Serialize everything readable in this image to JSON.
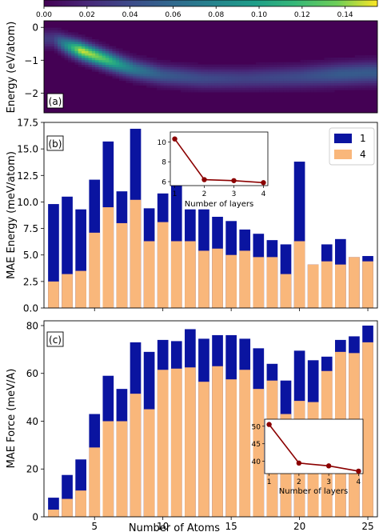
{
  "chart_data": [
    {
      "panel": "(a)",
      "type": "heatmap",
      "ylabel": "Energy (eV/atom)",
      "yticks": [
        0,
        -1,
        -2
      ],
      "ylim": [
        -2.6,
        0.2
      ],
      "colorbar": {
        "ticks": [
          "0.00",
          "0.02",
          "0.04",
          "0.06",
          "0.08",
          "0.10",
          "0.12",
          "0.14"
        ],
        "range": [
          0,
          0.155
        ],
        "colormap": "viridis"
      },
      "ridge": [
        {
          "x": 2,
          "center": -0.35,
          "peak": 0.03
        },
        {
          "x": 3,
          "center": -0.55,
          "peak": 0.09
        },
        {
          "x": 4,
          "center": -0.7,
          "peak": 0.15
        },
        {
          "x": 5,
          "center": -0.85,
          "peak": 0.14
        },
        {
          "x": 6,
          "center": -1.0,
          "peak": 0.12
        },
        {
          "x": 7,
          "center": -1.15,
          "peak": 0.09
        },
        {
          "x": 8,
          "center": -1.28,
          "peak": 0.07
        },
        {
          "x": 10,
          "center": -1.45,
          "peak": 0.05
        },
        {
          "x": 13,
          "center": -1.55,
          "peak": 0.04
        },
        {
          "x": 16,
          "center": -1.55,
          "peak": 0.035
        },
        {
          "x": 20,
          "center": -1.5,
          "peak": 0.04
        },
        {
          "x": 23,
          "center": -1.42,
          "peak": 0.05
        },
        {
          "x": 25,
          "center": -1.38,
          "peak": 0.05
        }
      ]
    },
    {
      "panel": "(b)",
      "type": "bar",
      "ylabel": "MAE Energy (meV/atom)",
      "ylim": [
        0,
        17.5
      ],
      "yticks": [
        "0.0",
        "2.5",
        "5.0",
        "7.5",
        "10.0",
        "12.5",
        "15.0",
        "17.5"
      ],
      "categories": [
        2,
        3,
        4,
        5,
        6,
        7,
        8,
        9,
        10,
        11,
        12,
        13,
        14,
        15,
        16,
        17,
        18,
        19,
        20,
        21,
        22,
        23,
        24,
        25
      ],
      "series": [
        {
          "name": "1",
          "color": "#0a14a0",
          "values": [
            9.8,
            10.5,
            9.3,
            12.1,
            15.7,
            11.0,
            16.9,
            9.4,
            10.8,
            11.8,
            9.3,
            9.3,
            8.6,
            8.2,
            7.4,
            7.0,
            6.4,
            6.0,
            13.8,
            4.1,
            6.0,
            6.5,
            4.8,
            4.9
          ]
        },
        {
          "name": "4",
          "color": "#f9b77b",
          "values": [
            2.5,
            3.2,
            3.5,
            7.1,
            9.5,
            8.0,
            10.2,
            6.3,
            8.1,
            6.3,
            6.3,
            5.4,
            5.6,
            5.0,
            5.4,
            4.8,
            4.8,
            3.2,
            6.3,
            4.1,
            4.4,
            4.1,
            4.8,
            4.4
          ]
        }
      ],
      "legend": {
        "position": "top-right",
        "entries": [
          "1",
          "4"
        ]
      },
      "inset": {
        "xlabel": "Number of layers",
        "x": [
          1,
          2,
          3,
          4
        ],
        "y": [
          10.3,
          6.2,
          6.1,
          5.9
        ],
        "xlim": [
          0.85,
          4.15
        ],
        "ylim": [
          5.6,
          11.0
        ],
        "yticks": [
          6,
          8,
          10
        ],
        "color": "#8b0000"
      }
    },
    {
      "panel": "(c)",
      "type": "bar",
      "ylabel": "MAE Force (meV/A)",
      "xlabel": "Number of Atoms",
      "ylim": [
        0,
        82
      ],
      "yticks": [
        0,
        20,
        40,
        60,
        80
      ],
      "xticks": [
        5,
        10,
        15,
        20,
        25
      ],
      "xlim": [
        1.3,
        25.7
      ],
      "categories": [
        2,
        3,
        4,
        5,
        6,
        7,
        8,
        9,
        10,
        11,
        12,
        13,
        14,
        15,
        16,
        17,
        18,
        19,
        20,
        21,
        22,
        23,
        24,
        25
      ],
      "series": [
        {
          "name": "1",
          "color": "#0a14a0",
          "values": [
            8,
            17.5,
            24,
            43,
            59,
            53.5,
            73,
            69,
            74,
            73.5,
            78.5,
            74.5,
            76,
            76,
            74.5,
            70.5,
            64,
            57,
            69.5,
            65.5,
            67,
            74,
            75.5,
            80
          ]
        },
        {
          "name": "4",
          "color": "#f9b77b",
          "values": [
            3,
            7.5,
            11,
            29,
            40,
            40,
            51.5,
            45,
            61.5,
            62,
            62.5,
            56.5,
            63,
            57.5,
            61.5,
            53.5,
            57,
            43,
            48.5,
            48,
            61,
            69,
            68.5,
            73
          ]
        }
      ],
      "inset": {
        "xlabel": "Number of layers",
        "x": [
          1,
          2,
          3,
          4
        ],
        "y": [
          50.5,
          39.5,
          38.7,
          37.2
        ],
        "xlim": [
          0.85,
          4.15
        ],
        "ylim": [
          36.5,
          52.0
        ],
        "yticks": [
          40,
          45,
          50
        ],
        "color": "#8b0000"
      }
    }
  ]
}
